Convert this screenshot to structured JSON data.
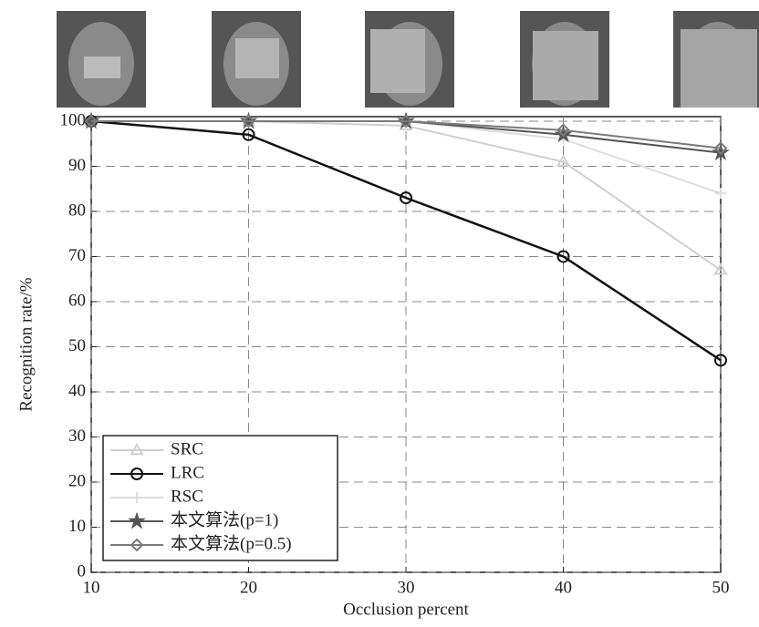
{
  "chart_data": {
    "type": "line",
    "x": [
      10,
      20,
      30,
      40,
      50
    ],
    "xlabel": "Occlusion percent",
    "ylabel": "Recognition rate/%",
    "xlim": [
      10,
      50
    ],
    "xticks": [
      10,
      20,
      30,
      40,
      50
    ],
    "ylim": [
      0,
      101
    ],
    "yticks": [
      0,
      10,
      20,
      30,
      40,
      50,
      60,
      70,
      80,
      90,
      100
    ],
    "grid": true,
    "legend": "lower left",
    "series": [
      {
        "name": "SRC",
        "color": "#cfcfcf",
        "marker": "triangle",
        "values": [
          100,
          100,
          99,
          91,
          67
        ]
      },
      {
        "name": "LRC",
        "color": "#111111",
        "marker": "circle",
        "values": [
          100,
          97,
          83,
          70,
          47
        ]
      },
      {
        "name": "RSC",
        "color": "#dddddd",
        "marker": "plus",
        "values": [
          100,
          100,
          100,
          96,
          84
        ]
      },
      {
        "name": "本文算法(p=1)",
        "color": "#555555",
        "marker": "star",
        "values": [
          100,
          100,
          100,
          97,
          93
        ]
      },
      {
        "name": "本文算法(p=0.5)",
        "color": "#7a7a7a",
        "marker": "diamond",
        "values": [
          100,
          100,
          100,
          98,
          94
        ]
      }
    ]
  }
}
